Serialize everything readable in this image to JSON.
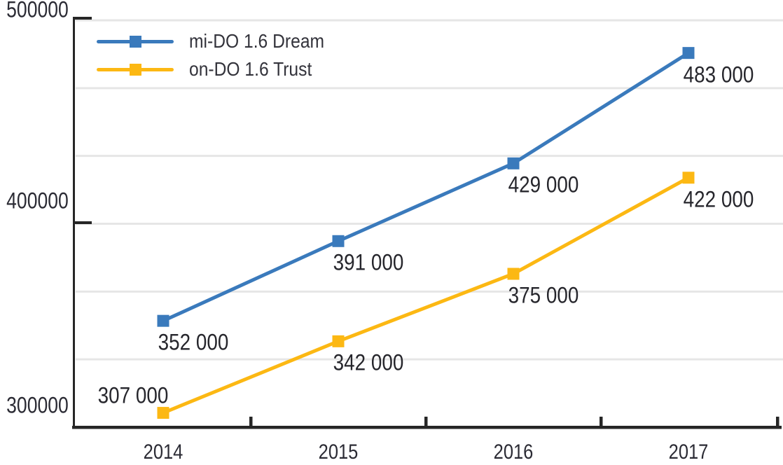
{
  "chart_data": {
    "type": "line",
    "title": "",
    "categories": [
      "2014",
      "2015",
      "2016",
      "2017"
    ],
    "series": [
      {
        "name": "mi-DO 1.6 Dream",
        "color": "#3a7abc",
        "marker": "square",
        "values": [
          352000,
          391000,
          429000,
          483000
        ],
        "point_labels": [
          "352 000",
          "391 000",
          "429 000",
          "483 000"
        ],
        "label_placement": [
          "below-right",
          "below-right",
          "below-right",
          "below-right"
        ]
      },
      {
        "name": "on-DO 1.6 Trust",
        "color": "#fcb813",
        "marker": "square",
        "values": [
          307000,
          342000,
          375000,
          422000
        ],
        "point_labels": [
          "307 000",
          "342 000",
          "375 000",
          "422 000"
        ],
        "label_placement": [
          "above-left",
          "below-right",
          "below-right",
          "below-right"
        ]
      }
    ],
    "xlabel": "",
    "ylabel": "",
    "ylim": [
      300000,
      500000
    ],
    "yticks": [
      {
        "value": 500000,
        "label": "500000"
      },
      {
        "value": 400000,
        "label": "400000"
      },
      {
        "value": 300000,
        "label": "300000"
      }
    ],
    "grid": "horizontal",
    "gridline_count": 6,
    "legend_position": "top-left",
    "colors": {
      "axis": "#262626",
      "gridline": "#e6e6e6",
      "label_text": "#26262c",
      "tick_text": "#2b2b34"
    }
  }
}
